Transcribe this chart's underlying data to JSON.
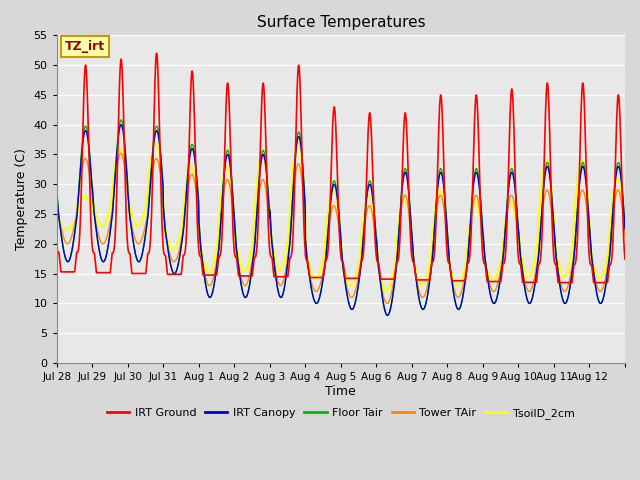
{
  "title": "Surface Temperatures",
  "xlabel": "Time",
  "ylabel": "Temperature (C)",
  "ylim": [
    0,
    55
  ],
  "yticks": [
    0,
    5,
    10,
    15,
    20,
    25,
    30,
    35,
    40,
    45,
    50,
    55
  ],
  "plot_bg_color": "#d8d8d8",
  "inner_bg_color": "#e8e8e8",
  "grid_color": "#ffffff",
  "series": {
    "IRT Ground": {
      "color": "#ff0000",
      "lw": 1.2
    },
    "IRT Canopy": {
      "color": "#0000cc",
      "lw": 1.0
    },
    "Floor Tair": {
      "color": "#00bb00",
      "lw": 1.0
    },
    "Tower TAir": {
      "color": "#ff8800",
      "lw": 1.0
    },
    "TsoilD_2cm": {
      "color": "#ffff00",
      "lw": 1.4
    }
  },
  "annotation_text": "TZ_irt",
  "annotation_color": "#990000",
  "annotation_bg": "#ffffaa",
  "annotation_border": "#cc9900",
  "num_days": 16,
  "xtick_labels": [
    "Jul 28",
    "Jul 29",
    "Jul 30",
    "Jul 31",
    "Aug 1",
    "Aug 2",
    "Aug 3",
    "Aug 4",
    "Aug 5",
    "Aug 6",
    "Aug 7",
    "Aug 8",
    "Aug 9",
    "Aug 10",
    "Aug 11",
    "Aug 12"
  ],
  "day_peaks_red": [
    50,
    51,
    52,
    49,
    47,
    47,
    50,
    43,
    42,
    42,
    45,
    45,
    46,
    47,
    47,
    45
  ],
  "day_mins_blue": [
    17,
    17,
    17,
    15,
    11,
    11,
    11,
    10,
    9,
    8,
    9,
    9,
    10,
    10,
    10,
    10
  ],
  "day_peaks_blue": [
    39,
    40,
    39,
    36,
    35,
    35,
    38,
    30,
    30,
    32,
    32,
    32,
    32,
    33,
    33,
    33
  ],
  "day_peaks_yellow": [
    28,
    36,
    37,
    33,
    33,
    35,
    37,
    29,
    28,
    28,
    29,
    27,
    27,
    34,
    34,
    31
  ]
}
